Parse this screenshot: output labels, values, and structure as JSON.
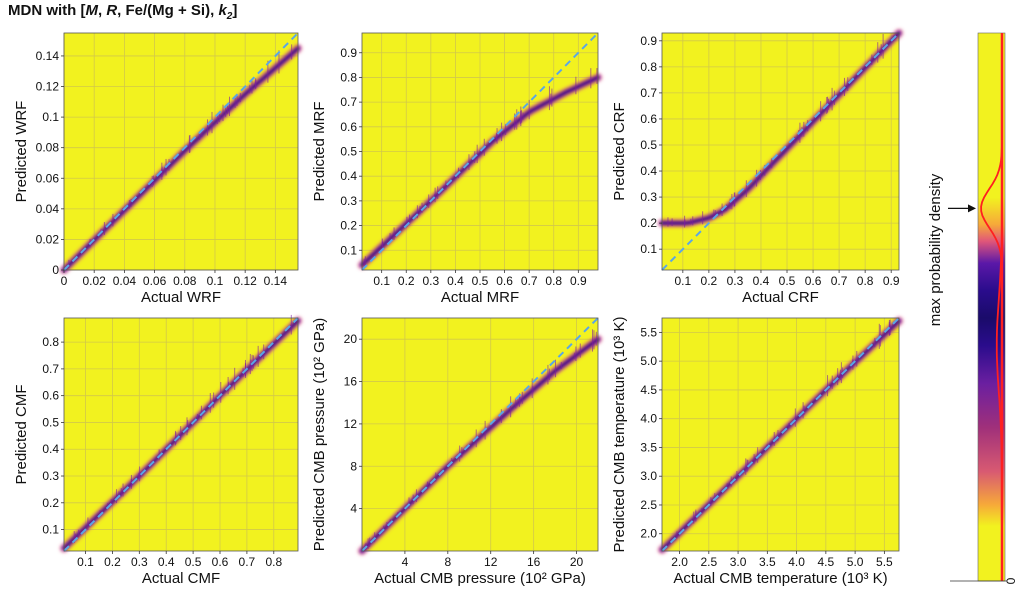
{
  "figure_title": {
    "prefix": "MDN with [",
    "parts": [
      {
        "text": "M",
        "italic": true
      },
      {
        "text": ", ",
        "italic": false
      },
      {
        "text": "R",
        "italic": true
      },
      {
        "text": ", Fe/(Mg + Si), ",
        "italic": false
      },
      {
        "text": "k",
        "italic": true,
        "sub": "2"
      }
    ],
    "suffix": "]"
  },
  "colors": {
    "background": "#f2f21f",
    "grid": "#d2c84a",
    "density_dark": "#1a0b7a",
    "density_mid": "#7d1aa0",
    "density_edge": "#e0567a",
    "diagonal": "#5aa6e6",
    "colorbar_line": "#ff2020"
  },
  "chart_data": [
    {
      "id": "wrf",
      "type": "heatmap",
      "xlabel": "Actual WRF",
      "ylabel": "Predicted WRF",
      "xlim": [
        0,
        0.155
      ],
      "ylim": [
        0,
        0.155
      ],
      "xticks": [
        0,
        0.02,
        0.04,
        0.06,
        0.08,
        0.1,
        0.12,
        0.14
      ],
      "xtick_labels": [
        "0",
        "0.02",
        "0.04",
        "0.06",
        "0.08",
        "0.1",
        "0.12",
        "0.14"
      ],
      "yticks": [
        0,
        0.02,
        0.04,
        0.06,
        0.08,
        0.1,
        0.12,
        0.14
      ],
      "ytick_labels": [
        "0",
        "0.02",
        "0.04",
        "0.06",
        "0.08",
        "0.1",
        "0.12",
        "0.14"
      ],
      "grid": true,
      "prediction_trend": {
        "x": [
          0,
          0.04,
          0.08,
          0.12,
          0.155
        ],
        "y": [
          0,
          0.039,
          0.078,
          0.115,
          0.145
        ]
      }
    },
    {
      "id": "mrf",
      "type": "heatmap",
      "xlabel": "Actual MRF",
      "ylabel": "Predicted MRF",
      "xlim": [
        0.02,
        0.98
      ],
      "ylim": [
        0.02,
        0.98
      ],
      "xticks": [
        0.1,
        0.2,
        0.3,
        0.4,
        0.5,
        0.6,
        0.7,
        0.8,
        0.9
      ],
      "xtick_labels": [
        "0.1",
        "0.2",
        "0.3",
        "0.4",
        "0.5",
        "0.6",
        "0.7",
        "0.8",
        "0.9"
      ],
      "yticks": [
        0.1,
        0.2,
        0.3,
        0.4,
        0.5,
        0.6,
        0.7,
        0.8,
        0.9
      ],
      "ytick_labels": [
        "0.1",
        "0.2",
        "0.3",
        "0.4",
        "0.5",
        "0.6",
        "0.7",
        "0.8",
        "0.9"
      ],
      "grid": true,
      "prediction_trend": {
        "x": [
          0.02,
          0.3,
          0.55,
          0.7,
          0.85,
          0.98
        ],
        "y": [
          0.04,
          0.3,
          0.54,
          0.66,
          0.74,
          0.8
        ]
      }
    },
    {
      "id": "crf",
      "type": "heatmap",
      "xlabel": "Actual CRF",
      "ylabel": "Predicted CRF",
      "xlim": [
        0.02,
        0.93
      ],
      "ylim": [
        0.02,
        0.93
      ],
      "xticks": [
        0.1,
        0.2,
        0.3,
        0.4,
        0.5,
        0.6,
        0.7,
        0.8,
        0.9
      ],
      "xtick_labels": [
        "0.1",
        "0.2",
        "0.3",
        "0.4",
        "0.5",
        "0.6",
        "0.7",
        "0.8",
        "0.9"
      ],
      "yticks": [
        0.1,
        0.2,
        0.3,
        0.4,
        0.5,
        0.6,
        0.7,
        0.8,
        0.9
      ],
      "ytick_labels": [
        "0.1",
        "0.2",
        "0.3",
        "0.4",
        "0.5",
        "0.6",
        "0.7",
        "0.8",
        "0.9"
      ],
      "grid": true,
      "prediction_trend": {
        "x": [
          0.02,
          0.12,
          0.2,
          0.26,
          0.35,
          0.6,
          0.93
        ],
        "y": [
          0.2,
          0.2,
          0.22,
          0.25,
          0.33,
          0.59,
          0.93
        ]
      }
    },
    {
      "id": "cmf",
      "type": "heatmap",
      "xlabel": "Actual CMF",
      "ylabel": "Predicted CMF",
      "xlim": [
        0.02,
        0.89
      ],
      "ylim": [
        0.02,
        0.89
      ],
      "xticks": [
        0.1,
        0.2,
        0.3,
        0.4,
        0.5,
        0.6,
        0.7,
        0.8
      ],
      "xtick_labels": [
        "0.1",
        "0.2",
        "0.3",
        "0.4",
        "0.5",
        "0.6",
        "0.7",
        "0.8"
      ],
      "yticks": [
        0.1,
        0.2,
        0.3,
        0.4,
        0.5,
        0.6,
        0.7,
        0.8
      ],
      "ytick_labels": [
        "0.1",
        "0.2",
        "0.3",
        "0.4",
        "0.5",
        "0.6",
        "0.7",
        "0.8"
      ],
      "grid": true,
      "prediction_trend": {
        "x": [
          0.02,
          0.3,
          0.6,
          0.89
        ],
        "y": [
          0.03,
          0.3,
          0.6,
          0.88
        ]
      }
    },
    {
      "id": "cmb_pressure",
      "type": "heatmap",
      "xlabel": "Actual CMB pressure (10² GPa)",
      "ylabel": "Predicted CMB pressure (10² GPa)",
      "xlim": [
        0,
        22
      ],
      "ylim": [
        0,
        22
      ],
      "xticks": [
        4,
        8,
        12,
        16,
        20
      ],
      "xtick_labels": [
        "4",
        "8",
        "12",
        "16",
        "20"
      ],
      "yticks": [
        4,
        8,
        12,
        16,
        20
      ],
      "ytick_labels": [
        "4",
        "8",
        "12",
        "16",
        "20"
      ],
      "grid": true,
      "prediction_trend": {
        "x": [
          0,
          8,
          14,
          18,
          22
        ],
        "y": [
          0,
          8,
          13.5,
          17,
          20
        ]
      }
    },
    {
      "id": "cmb_temperature",
      "type": "heatmap",
      "xlabel": "Actual CMB temperature (10³ K)",
      "ylabel": "Predicted CMB temperature (10³ K)",
      "xlim": [
        1.7,
        5.75
      ],
      "ylim": [
        1.7,
        5.75
      ],
      "xticks": [
        2.0,
        2.5,
        3.0,
        3.5,
        4.0,
        4.5,
        5.0,
        5.5
      ],
      "xtick_labels": [
        "2.0",
        "2.5",
        "3.0",
        "3.5",
        "4.0",
        "4.5",
        "5.0",
        "5.5"
      ],
      "yticks": [
        2.0,
        2.5,
        3.0,
        3.5,
        4.0,
        4.5,
        5.0,
        5.5
      ],
      "ytick_labels": [
        "2.0",
        "2.5",
        "3.0",
        "3.5",
        "4.0",
        "4.5",
        "5.0",
        "5.5"
      ],
      "grid": true,
      "prediction_trend": {
        "x": [
          1.7,
          3.0,
          4.5,
          5.75
        ],
        "y": [
          1.72,
          3.0,
          4.5,
          5.7
        ]
      }
    }
  ],
  "colorbar": {
    "label": "max probability density",
    "zero_label": "0",
    "profile_peak_fraction": 0.68
  }
}
